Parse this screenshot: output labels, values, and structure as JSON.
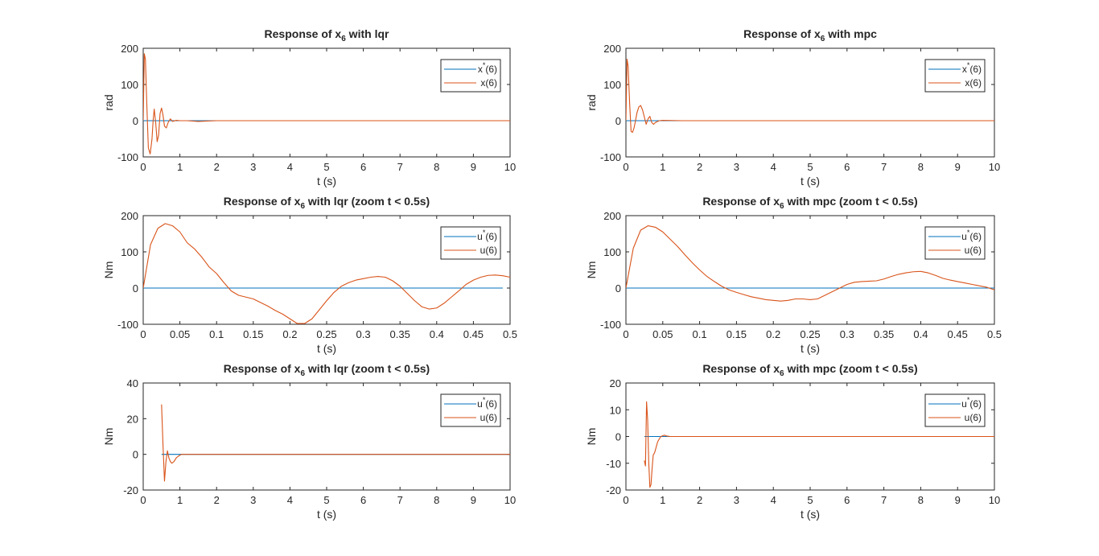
{
  "figure": {
    "background": "#ffffff"
  },
  "colors": {
    "reference": "#0072BD",
    "actual": "#D95319",
    "axis": "#262626"
  },
  "chart_data": [
    {
      "id": "lqr-x6-full",
      "type": "line",
      "title": {
        "pre": "Response of x",
        "sub": "6",
        "post": " with lqr"
      },
      "xlabel": "t (s)",
      "ylabel": "rad",
      "xlim": [
        0,
        10
      ],
      "ylim": [
        -100,
        200
      ],
      "xticks": [
        "0",
        "1",
        "2",
        "3",
        "4",
        "5",
        "6",
        "7",
        "8",
        "9",
        "10"
      ],
      "yticks": [
        "-100",
        "0",
        "100",
        "200"
      ],
      "legend": {
        "position": "top-right",
        "entries": [
          {
            "base": "x",
            "sup": "*",
            "tail": "(6)"
          },
          {
            "base": "x(6)",
            "sup": "",
            "tail": ""
          }
        ]
      },
      "series": [
        {
          "x": [
            0,
            10
          ],
          "y": [
            0,
            0
          ]
        },
        {
          "x": [
            0,
            0.03,
            0.06,
            0.1,
            0.14,
            0.19,
            0.24,
            0.27,
            0.3,
            0.34,
            0.38,
            0.42,
            0.46,
            0.5,
            0.54,
            0.58,
            0.63,
            0.68,
            0.74,
            0.8,
            0.9,
            1.0,
            1.2,
            1.5,
            2,
            3,
            4,
            5,
            6,
            7,
            8,
            9,
            10
          ],
          "y": [
            0,
            185,
            170,
            40,
            -75,
            -92,
            -50,
            0,
            32,
            -5,
            -58,
            -40,
            20,
            35,
            15,
            -15,
            -20,
            -5,
            5,
            -2,
            1,
            0,
            0,
            -2,
            0,
            0,
            0,
            0,
            0,
            0,
            0,
            0,
            0
          ]
        }
      ]
    },
    {
      "id": "mpc-x6-full",
      "type": "line",
      "title": {
        "pre": "Response of x",
        "sub": "6",
        "post": " with mpc"
      },
      "xlabel": "t (s)",
      "ylabel": "rad",
      "xlim": [
        0,
        10
      ],
      "ylim": [
        -100,
        200
      ],
      "xticks": [
        "0",
        "1",
        "2",
        "3",
        "4",
        "5",
        "6",
        "7",
        "8",
        "9",
        "10"
      ],
      "yticks": [
        "-100",
        "0",
        "100",
        "200"
      ],
      "legend": {
        "position": "top-right",
        "entries": [
          {
            "base": "x",
            "sup": "*",
            "tail": "(6)"
          },
          {
            "base": "x(6)",
            "sup": "",
            "tail": ""
          }
        ]
      },
      "series": [
        {
          "x": [
            0,
            10
          ],
          "y": [
            0,
            0
          ]
        },
        {
          "x": [
            0,
            0.03,
            0.06,
            0.1,
            0.14,
            0.18,
            0.22,
            0.26,
            0.3,
            0.35,
            0.4,
            0.45,
            0.5,
            0.55,
            0.6,
            0.65,
            0.7,
            0.75,
            0.8,
            0.9,
            1.0,
            1.5,
            2,
            3,
            4,
            5,
            6,
            7,
            8,
            9,
            10
          ],
          "y": [
            0,
            170,
            150,
            50,
            -30,
            -32,
            -20,
            0,
            22,
            38,
            42,
            30,
            10,
            -10,
            5,
            12,
            -5,
            -10,
            -5,
            0,
            1,
            0,
            0,
            0,
            0,
            0,
            0,
            0,
            0,
            0,
            0
          ]
        }
      ]
    },
    {
      "id": "lqr-zoom",
      "type": "line",
      "title": {
        "pre": "Response of x",
        "sub": "6",
        "post": " with lqr (zoom t < 0.5s)"
      },
      "xlabel": "t (s)",
      "ylabel": "Nm",
      "xlim": [
        0,
        0.5
      ],
      "ylim": [
        -100,
        200
      ],
      "xticks": [
        "0",
        "0.05",
        "0.1",
        "0.15",
        "0.2",
        "0.25",
        "0.3",
        "0.35",
        "0.4",
        "0.45",
        "0.5"
      ],
      "yticks": [
        "-100",
        "0",
        "100",
        "200"
      ],
      "legend": {
        "position": "top-right",
        "entries": [
          {
            "base": "u",
            "sup": "*",
            "tail": "(6)"
          },
          {
            "base": "u(6)",
            "sup": "",
            "tail": ""
          }
        ]
      },
      "series": [
        {
          "x": [
            0,
            0.49
          ],
          "y": [
            0,
            0
          ]
        },
        {
          "x": [
            0,
            0.01,
            0.02,
            0.03,
            0.04,
            0.05,
            0.06,
            0.07,
            0.08,
            0.09,
            0.1,
            0.11,
            0.12,
            0.13,
            0.14,
            0.15,
            0.16,
            0.17,
            0.18,
            0.19,
            0.2,
            0.21,
            0.22,
            0.23,
            0.24,
            0.25,
            0.26,
            0.27,
            0.28,
            0.29,
            0.3,
            0.31,
            0.32,
            0.33,
            0.34,
            0.35,
            0.36,
            0.37,
            0.38,
            0.39,
            0.4,
            0.41,
            0.42,
            0.43,
            0.44,
            0.45,
            0.46,
            0.47,
            0.48,
            0.49,
            0.5
          ],
          "y": [
            0,
            120,
            165,
            178,
            172,
            155,
            125,
            108,
            85,
            58,
            40,
            15,
            -8,
            -20,
            -25,
            -30,
            -40,
            -50,
            -62,
            -72,
            -85,
            -98,
            -98,
            -85,
            -60,
            -35,
            -12,
            5,
            15,
            22,
            26,
            30,
            32,
            30,
            20,
            5,
            -15,
            -35,
            -52,
            -58,
            -55,
            -42,
            -25,
            -8,
            10,
            22,
            30,
            35,
            36,
            34,
            30
          ]
        }
      ]
    },
    {
      "id": "mpc-zoom",
      "type": "line",
      "title": {
        "pre": "Response of x",
        "sub": "6",
        "post": " with mpc (zoom t < 0.5s)"
      },
      "xlabel": "t (s)",
      "ylabel": "Nm",
      "xlim": [
        0,
        0.5
      ],
      "ylim": [
        -100,
        200
      ],
      "xticks": [
        "0",
        "0.05",
        "0.1",
        "0.15",
        "0.2",
        "0.25",
        "0.3",
        "0.35",
        "0.4",
        "0.45",
        "0.5"
      ],
      "yticks": [
        "-100",
        "0",
        "100",
        "200"
      ],
      "legend": {
        "position": "top-right",
        "entries": [
          {
            "base": "u",
            "sup": "*",
            "tail": "(6)"
          },
          {
            "base": "u(6)",
            "sup": "",
            "tail": ""
          }
        ]
      },
      "series": [
        {
          "x": [
            0,
            0.5
          ],
          "y": [
            0,
            0
          ]
        },
        {
          "x": [
            0,
            0.01,
            0.02,
            0.03,
            0.04,
            0.05,
            0.06,
            0.07,
            0.08,
            0.09,
            0.1,
            0.11,
            0.12,
            0.13,
            0.14,
            0.15,
            0.16,
            0.17,
            0.18,
            0.19,
            0.2,
            0.21,
            0.22,
            0.23,
            0.24,
            0.25,
            0.26,
            0.27,
            0.28,
            0.29,
            0.3,
            0.31,
            0.32,
            0.33,
            0.34,
            0.35,
            0.36,
            0.37,
            0.38,
            0.39,
            0.4,
            0.41,
            0.42,
            0.43,
            0.44,
            0.45,
            0.46,
            0.47,
            0.48,
            0.49,
            0.5
          ],
          "y": [
            0,
            110,
            160,
            172,
            168,
            155,
            135,
            115,
            92,
            70,
            50,
            32,
            18,
            5,
            -5,
            -12,
            -18,
            -24,
            -28,
            -32,
            -34,
            -36,
            -34,
            -30,
            -30,
            -32,
            -30,
            -20,
            -10,
            0,
            10,
            16,
            18,
            19,
            20,
            25,
            32,
            38,
            42,
            45,
            46,
            42,
            35,
            27,
            22,
            18,
            14,
            10,
            6,
            2,
            -5
          ]
        }
      ]
    },
    {
      "id": "lqr-u-full",
      "type": "line",
      "title": {
        "pre": "Response of x",
        "sub": "6",
        "post": " with lqr (zoom t < 0.5s)"
      },
      "xlabel": "t (s)",
      "ylabel": "Nm",
      "xlim": [
        0,
        10
      ],
      "ylim": [
        -20,
        40
      ],
      "xticks": [
        "0",
        "1",
        "2",
        "3",
        "4",
        "5",
        "6",
        "7",
        "8",
        "9",
        "10"
      ],
      "yticks": [
        "-20",
        "0",
        "20",
        "40"
      ],
      "legend": {
        "position": "top-right",
        "entries": [
          {
            "base": "u",
            "sup": "*",
            "tail": "(6)"
          },
          {
            "base": "u(6)",
            "sup": "",
            "tail": ""
          }
        ]
      },
      "series": [
        {
          "x": [
            0.5,
            10
          ],
          "y": [
            0,
            0
          ]
        },
        {
          "x": [
            0.5,
            0.54,
            0.58,
            0.62,
            0.66,
            0.7,
            0.74,
            0.78,
            0.84,
            0.9,
            0.96,
            1.04,
            1.12,
            1.2,
            1.4,
            2,
            3,
            4,
            5,
            6,
            7,
            8,
            9,
            10
          ],
          "y": [
            28,
            5,
            -15,
            -4,
            2,
            -2,
            -4,
            -5,
            -4,
            -2,
            -1,
            0,
            0,
            0,
            0,
            0,
            0,
            0,
            0,
            0,
            0,
            0,
            0,
            0
          ]
        }
      ]
    },
    {
      "id": "mpc-u-full",
      "type": "line",
      "title": {
        "pre": "Response of x",
        "sub": "6",
        "post": " with mpc (zoom t < 0.5s)"
      },
      "xlabel": "t (s)",
      "ylabel": "Nm",
      "xlim": [
        0,
        10
      ],
      "ylim": [
        -20,
        20
      ],
      "xticks": [
        "0",
        "1",
        "2",
        "3",
        "4",
        "5",
        "6",
        "7",
        "8",
        "9",
        "10"
      ],
      "yticks": [
        "-20",
        "-10",
        "0",
        "10",
        "20"
      ],
      "legend": {
        "position": "top-right",
        "entries": [
          {
            "base": "u",
            "sup": "*",
            "tail": "(6)"
          },
          {
            "base": "u(6)",
            "sup": "",
            "tail": ""
          }
        ]
      },
      "series": [
        {
          "x": [
            0.5,
            10
          ],
          "y": [
            0,
            0
          ]
        },
        {
          "x": [
            0.5,
            0.53,
            0.56,
            0.59,
            0.62,
            0.65,
            0.68,
            0.71,
            0.74,
            0.78,
            0.82,
            0.86,
            0.9,
            0.95,
            1.0,
            1.05,
            1.1,
            1.2,
            1.4,
            2,
            3,
            4,
            5,
            6,
            7,
            8,
            9,
            10
          ],
          "y": [
            -9,
            -11,
            13,
            6,
            -10,
            -19,
            -18,
            -12,
            -7,
            -6,
            -4,
            -2,
            -1,
            0,
            0.3,
            0.5,
            0.2,
            0,
            0,
            0,
            0,
            0,
            0,
            0,
            0,
            0,
            0,
            0
          ]
        }
      ]
    }
  ]
}
